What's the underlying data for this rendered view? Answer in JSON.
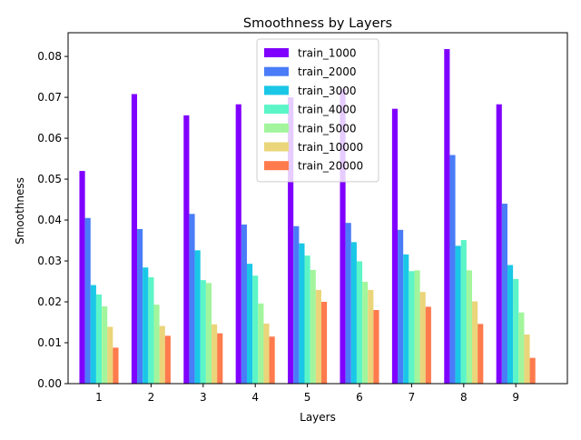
{
  "chart_data": {
    "type": "bar",
    "title": "Smoothness by Layers",
    "xlabel": "Layers",
    "ylabel": "Smoothness",
    "ylim": [
      0,
      0.0858
    ],
    "yticks": [
      "0.00",
      "0.01",
      "0.02",
      "0.03",
      "0.04",
      "0.05",
      "0.06",
      "0.07",
      "0.08"
    ],
    "ytick_values": [
      0,
      0.01,
      0.02,
      0.03,
      0.04,
      0.05,
      0.06,
      0.07,
      0.08
    ],
    "categories": [
      "1",
      "2",
      "3",
      "4",
      "5",
      "6",
      "7",
      "8",
      "9"
    ],
    "legend_position": "top-center",
    "grid": false,
    "series": [
      {
        "name": "train_1000",
        "color": "#8000ff",
        "values": [
          0.052,
          0.0708,
          0.0656,
          0.0683,
          0.07,
          0.072,
          0.0672,
          0.0818,
          0.0683
        ]
      },
      {
        "name": "train_2000",
        "color": "#4a7cf8",
        "values": [
          0.0405,
          0.0378,
          0.0415,
          0.0389,
          0.0385,
          0.0393,
          0.0376,
          0.0559,
          0.044
        ]
      },
      {
        "name": "train_3000",
        "color": "#1ac7e6",
        "values": [
          0.0241,
          0.0284,
          0.0326,
          0.0293,
          0.0343,
          0.0346,
          0.0316,
          0.0337,
          0.029
        ]
      },
      {
        "name": "train_4000",
        "color": "#5cf5c7",
        "values": [
          0.0218,
          0.026,
          0.0253,
          0.0264,
          0.0313,
          0.0299,
          0.0275,
          0.0351,
          0.0256
        ]
      },
      {
        "name": "train_5000",
        "color": "#a2f59c",
        "values": [
          0.0189,
          0.0193,
          0.0246,
          0.0196,
          0.0278,
          0.0249,
          0.0277,
          0.0277,
          0.0174
        ]
      },
      {
        "name": "train_10000",
        "color": "#ead57a",
        "values": [
          0.0139,
          0.0141,
          0.0145,
          0.0147,
          0.0229,
          0.0229,
          0.0224,
          0.0201,
          0.012
        ]
      },
      {
        "name": "train_20000",
        "color": "#ff7a4d",
        "values": [
          0.0088,
          0.0117,
          0.0123,
          0.0115,
          0.02,
          0.018,
          0.0188,
          0.0146,
          0.0063
        ]
      }
    ]
  }
}
